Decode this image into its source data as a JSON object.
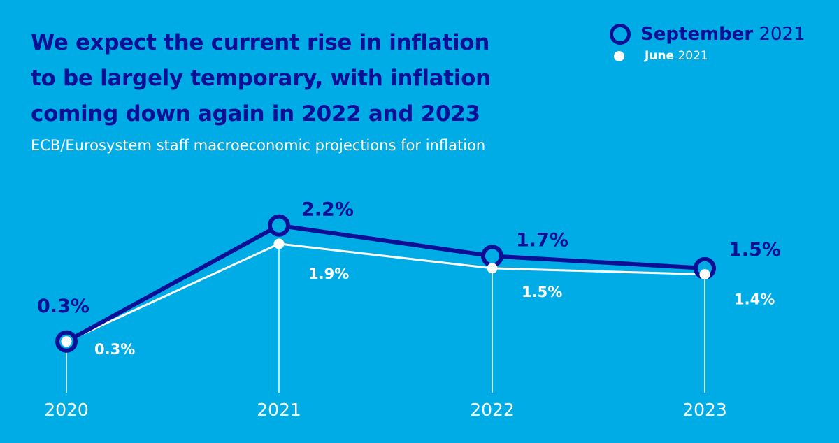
{
  "title_lines": [
    "We expect the current rise in inflation",
    "to be largely temporary, with inflation",
    "coming down again in 2022 and 2023"
  ],
  "subtitle": "ECB/Eurosystem staff macroeconomic projections for inflation",
  "legend": {
    "september": {
      "bold": "September",
      "rest": "2021"
    },
    "june": {
      "bold": "June",
      "rest": "2021"
    }
  },
  "colors": {
    "background": "#00ace6",
    "september": "#0a0f96",
    "june": "#ffffff"
  },
  "chart_data": {
    "type": "line",
    "categories": [
      "2020",
      "2021",
      "2022",
      "2023"
    ],
    "series": [
      {
        "name": "September 2021",
        "values": [
          0.3,
          2.2,
          1.7,
          1.5
        ],
        "labels": [
          "0.3%",
          "2.2%",
          "1.7%",
          "1.5%"
        ],
        "marker": "ring",
        "color": "#0a0f96"
      },
      {
        "name": "June 2021",
        "values": [
          0.3,
          1.9,
          1.5,
          1.4
        ],
        "labels": [
          "0.3%",
          "1.9%",
          "1.5%",
          "1.4%"
        ],
        "marker": "dot",
        "color": "#ffffff"
      }
    ],
    "unit": "%",
    "grid": false,
    "legend_position": "top-right"
  }
}
